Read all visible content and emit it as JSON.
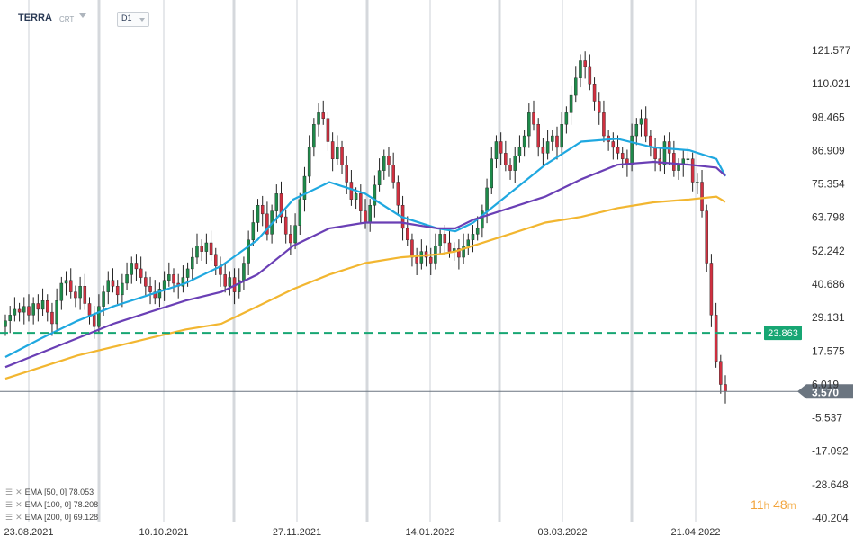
{
  "header": {
    "symbol": "TERRA",
    "source": "CRT",
    "timeframe": "D1"
  },
  "legend": [
    {
      "label": "EMA  [50,  0]  78.053",
      "color": "#1fa8e0"
    },
    {
      "label": "EMA  [100,  0]  78.208",
      "color": "#6a3fb5"
    },
    {
      "label": "EMA  [200,  0]  69.128",
      "color": "#f2b630"
    }
  ],
  "countdown": {
    "hours": "11",
    "h_unit": "h",
    "minutes": "48",
    "m_unit": "m"
  },
  "chart_data": {
    "type": "candlestick",
    "x_tick_labels": [
      "23.08.2021",
      "10.10.2021",
      "27.11.2021",
      "14.01.2022",
      "03.03.2022",
      "21.04.2022"
    ],
    "y_tick_labels": [
      "121.577",
      "110.021",
      "98.465",
      "86.909",
      "75.354",
      "63.798",
      "52.242",
      "40.686",
      "29.131",
      "17.575",
      "6.019",
      "-5.537",
      "-17.092",
      "-28.648",
      "-40.204"
    ],
    "y_range": [
      -40.204,
      121.577
    ],
    "close_series": [
      28,
      30,
      32,
      31,
      33,
      30,
      34,
      32,
      35,
      31,
      27,
      35,
      41,
      42,
      38,
      36,
      40,
      34,
      30,
      26,
      33,
      38,
      42,
      40,
      37,
      41,
      44,
      48,
      46,
      43,
      40,
      38,
      36,
      39,
      42,
      44,
      41,
      40,
      43,
      46,
      50,
      54,
      52,
      55,
      51,
      47,
      44,
      40,
      43,
      38,
      42,
      48,
      56,
      62,
      68,
      65,
      58,
      66,
      72,
      64,
      58,
      55,
      61,
      70,
      78,
      88,
      96,
      100,
      98,
      90,
      84,
      88,
      82,
      76,
      70,
      72,
      66,
      62,
      68,
      75,
      80,
      85,
      82,
      76,
      68,
      60,
      56,
      50,
      48,
      52,
      50,
      48,
      54,
      58,
      55,
      52,
      53,
      50,
      54,
      56,
      58,
      60,
      66,
      74,
      84,
      90,
      86,
      82,
      80,
      85,
      88,
      92,
      100,
      96,
      88,
      86,
      90,
      92,
      88,
      96,
      100,
      106,
      112,
      118,
      116,
      110,
      104,
      100,
      92,
      90,
      88,
      86,
      84,
      82,
      92,
      96,
      98,
      92,
      88,
      84,
      82,
      90,
      86,
      80,
      82,
      84,
      84,
      76,
      76,
      66,
      48,
      30,
      14,
      6,
      3.57
    ],
    "series": [
      {
        "name": "EMA [50, 0]",
        "points": [
          [
            0,
            15.5
          ],
          [
            20,
            22
          ],
          [
            40,
            28
          ],
          [
            60,
            33
          ],
          [
            80,
            37
          ],
          [
            100,
            41
          ],
          [
            120,
            47
          ],
          [
            140,
            56
          ],
          [
            160,
            70
          ],
          [
            180,
            76
          ],
          [
            200,
            72
          ],
          [
            220,
            64
          ],
          [
            240,
            60
          ],
          [
            250,
            59
          ],
          [
            260,
            62
          ],
          [
            280,
            72
          ],
          [
            300,
            82
          ],
          [
            320,
            90
          ],
          [
            340,
            91
          ],
          [
            360,
            88
          ],
          [
            380,
            87
          ],
          [
            395,
            84
          ],
          [
            400,
            78.053
          ]
        ]
      },
      {
        "name": "EMA [100, 0]",
        "points": [
          [
            0,
            12
          ],
          [
            20,
            17
          ],
          [
            40,
            22
          ],
          [
            60,
            27
          ],
          [
            80,
            31
          ],
          [
            100,
            35
          ],
          [
            120,
            38
          ],
          [
            140,
            44
          ],
          [
            160,
            54
          ],
          [
            180,
            60
          ],
          [
            200,
            62
          ],
          [
            220,
            62
          ],
          [
            240,
            60
          ],
          [
            250,
            60
          ],
          [
            260,
            63
          ],
          [
            280,
            67
          ],
          [
            300,
            71
          ],
          [
            320,
            77
          ],
          [
            340,
            82
          ],
          [
            360,
            83
          ],
          [
            380,
            82
          ],
          [
            395,
            81
          ],
          [
            400,
            78.208
          ]
        ]
      },
      {
        "name": "EMA [200, 0]",
        "points": [
          [
            0,
            8
          ],
          [
            20,
            12
          ],
          [
            40,
            16
          ],
          [
            60,
            19
          ],
          [
            80,
            22
          ],
          [
            100,
            25
          ],
          [
            120,
            27
          ],
          [
            140,
            33
          ],
          [
            160,
            39
          ],
          [
            180,
            44
          ],
          [
            200,
            48
          ],
          [
            220,
            50
          ],
          [
            240,
            51
          ],
          [
            250,
            52
          ],
          [
            260,
            54
          ],
          [
            280,
            58
          ],
          [
            300,
            62
          ],
          [
            320,
            64
          ],
          [
            340,
            67
          ],
          [
            360,
            69
          ],
          [
            380,
            70
          ],
          [
            395,
            71
          ],
          [
            400,
            69.128
          ]
        ]
      }
    ],
    "horizontal_lines": [
      {
        "label": "23.863",
        "value": 23.863,
        "color": "#17a673",
        "style": "dashed"
      },
      {
        "label": "3.570",
        "value": 3.57,
        "color": "#6b7580",
        "style": "solid"
      }
    ]
  }
}
